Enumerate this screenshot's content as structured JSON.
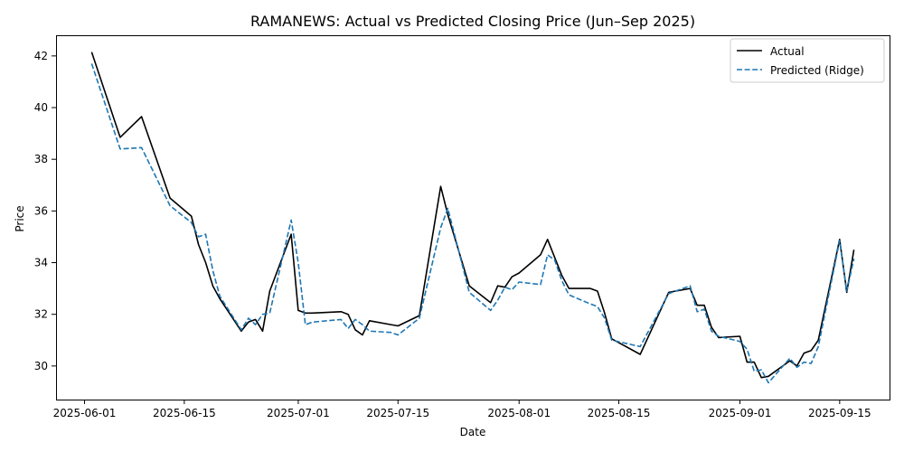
{
  "chart_data": {
    "type": "line",
    "title": "RAMANEWS: Actual vs Predicted Closing Price (Jun–Sep 2025)",
    "xlabel": "Date",
    "ylabel": "Price",
    "xlim": [
      "2025-05-28",
      "2025-09-22"
    ],
    "ylim": [
      28.7,
      42.8
    ],
    "x_ticks": [
      "2025-06-01",
      "2025-06-15",
      "2025-07-01",
      "2025-07-15",
      "2025-08-01",
      "2025-08-15",
      "2025-09-01",
      "2025-09-15"
    ],
    "y_ticks": [
      30,
      32,
      34,
      36,
      38,
      40,
      42
    ],
    "grid": false,
    "legend": "top-right",
    "dates": [
      "2025-06-02",
      "2025-06-06",
      "2025-06-09",
      "2025-06-13",
      "2025-06-16",
      "2025-06-17",
      "2025-06-18",
      "2025-06-19",
      "2025-06-20",
      "2025-06-23",
      "2025-06-24",
      "2025-06-25",
      "2025-06-26",
      "2025-06-27",
      "2025-06-30",
      "2025-07-01",
      "2025-07-02",
      "2025-07-03",
      "2025-07-07",
      "2025-07-08",
      "2025-07-09",
      "2025-07-10",
      "2025-07-11",
      "2025-07-14",
      "2025-07-15",
      "2025-07-18",
      "2025-07-21",
      "2025-07-22",
      "2025-07-25",
      "2025-07-28",
      "2025-07-29",
      "2025-07-30",
      "2025-07-31",
      "2025-08-01",
      "2025-08-04",
      "2025-08-05",
      "2025-08-06",
      "2025-08-07",
      "2025-08-08",
      "2025-08-11",
      "2025-08-12",
      "2025-08-13",
      "2025-08-14",
      "2025-08-18",
      "2025-08-22",
      "2025-08-25",
      "2025-08-26",
      "2025-08-27",
      "2025-08-28",
      "2025-08-29",
      "2025-09-01",
      "2025-09-02",
      "2025-09-03",
      "2025-09-04",
      "2025-09-05",
      "2025-09-08",
      "2025-09-09",
      "2025-09-10",
      "2025-09-11",
      "2025-09-12",
      "2025-09-15",
      "2025-09-16",
      "2025-09-17"
    ],
    "series": [
      {
        "name": "Actual",
        "color": "#000000",
        "style": "solid",
        "values": [
          42.15,
          38.85,
          39.65,
          36.5,
          35.8,
          34.7,
          34.0,
          33.1,
          32.6,
          31.35,
          31.7,
          31.8,
          31.35,
          32.9,
          35.1,
          32.15,
          32.05,
          32.05,
          32.1,
          32.0,
          31.4,
          31.2,
          31.75,
          31.6,
          31.55,
          31.95,
          36.95,
          35.85,
          33.1,
          32.45,
          33.1,
          33.05,
          33.45,
          33.6,
          34.3,
          34.9,
          34.2,
          33.5,
          33.0,
          33.0,
          32.9,
          32.05,
          31.05,
          30.45,
          32.85,
          33.0,
          32.35,
          32.35,
          31.5,
          31.1,
          31.15,
          30.15,
          30.15,
          29.55,
          29.6,
          30.2,
          30.0,
          30.5,
          30.6,
          31.0,
          34.9,
          32.85,
          34.5
        ]
      },
      {
        "name": "Predicted (Ridge)",
        "color": "#1f77b4",
        "style": "dashed",
        "values": [
          41.7,
          38.4,
          38.45,
          36.2,
          35.55,
          35.0,
          35.1,
          33.7,
          32.7,
          31.4,
          31.85,
          31.6,
          32.0,
          32.05,
          35.65,
          34.0,
          31.6,
          31.7,
          31.8,
          31.45,
          31.8,
          31.6,
          31.35,
          31.3,
          31.2,
          31.85,
          35.35,
          36.1,
          32.85,
          32.15,
          32.55,
          33.05,
          32.95,
          33.25,
          33.15,
          34.3,
          34.1,
          33.3,
          32.75,
          32.4,
          32.3,
          31.85,
          31.0,
          30.75,
          32.8,
          33.1,
          32.1,
          32.2,
          31.35,
          31.15,
          30.95,
          30.65,
          29.8,
          29.85,
          29.35,
          30.3,
          29.95,
          30.15,
          30.1,
          30.75,
          34.85,
          32.9,
          34.15
        ]
      }
    ]
  }
}
